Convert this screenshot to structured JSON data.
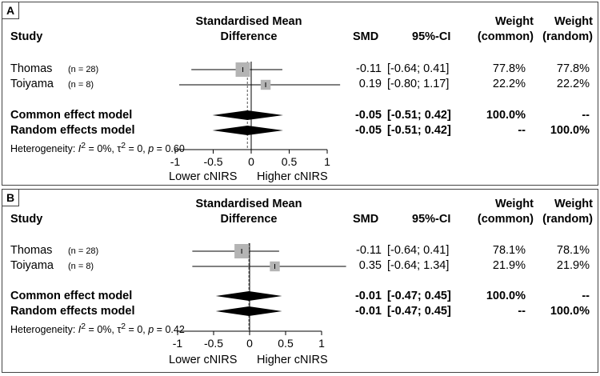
{
  "columns": {
    "study": "Study",
    "smd_line1": "Standardised Mean",
    "smd_line2": "Difference",
    "smd": "SMD",
    "ci": "95%-CI",
    "wc_line1": "Weight",
    "wc_line2": "(common)",
    "wr_line1": "Weight",
    "wr_line2": "(random)"
  },
  "colors": {
    "box": "#b4b4b4",
    "diamond": "#000000",
    "line": "#000000"
  },
  "chart_data": [
    {
      "type": "forest",
      "panel_label": "A",
      "xlim": [
        -1,
        1
      ],
      "ticks": [
        -1,
        -0.5,
        0,
        0.5,
        1
      ],
      "tick_labels": [
        "-1",
        "-0.5",
        "0",
        "0.5",
        "1"
      ],
      "xlabel_left": "Lower cNIRS",
      "xlabel_right": "Higher cNIRS",
      "studies": [
        {
          "name": "Thomas",
          "n": "(n = 28)",
          "smd": -0.11,
          "lo": -0.64,
          "hi": 0.41,
          "smd_text": "-0.11",
          "ci_text": "[-0.64; 0.41]",
          "w_common": "77.8%",
          "w_random": "77.8%",
          "weight": 77.8
        },
        {
          "name": "Toiyama",
          "n": "(n = 8)",
          "smd": 0.19,
          "lo": -0.8,
          "hi": 1.17,
          "smd_text": "0.19",
          "ci_text": "[-0.80; 1.17]",
          "w_common": "22.2%",
          "w_random": "22.2%",
          "weight": 22.2
        }
      ],
      "models": [
        {
          "name": "Common effect model",
          "smd": -0.05,
          "lo": -0.51,
          "hi": 0.42,
          "smd_text": "-0.05",
          "ci_text": "[-0.51; 0.42]",
          "w_common": "100.0%",
          "w_random": "--"
        },
        {
          "name": "Random effects model",
          "smd": -0.05,
          "lo": -0.51,
          "hi": 0.42,
          "smd_text": "-0.05",
          "ci_text": "[-0.51; 0.42]",
          "w_common": "--",
          "w_random": "100.0%"
        }
      ],
      "heterogeneity": {
        "prefix": "Heterogeneity: ",
        "i2": "0%",
        "tau2": "0",
        "p": "0.60"
      }
    },
    {
      "type": "forest",
      "panel_label": "B",
      "xlim": [
        -1,
        1
      ],
      "ticks": [
        -1,
        -0.5,
        0,
        0.5,
        1
      ],
      "tick_labels": [
        "-1",
        "-0.5",
        "0",
        "0.5",
        "1"
      ],
      "xlabel_left": "Lower cNIRS",
      "xlabel_right": "Higher cNIRS",
      "studies": [
        {
          "name": "Thomas",
          "n": "(n = 28)",
          "smd": -0.11,
          "lo": -0.64,
          "hi": 0.41,
          "smd_text": "-0.11",
          "ci_text": "[-0.64; 0.41]",
          "w_common": "78.1%",
          "w_random": "78.1%",
          "weight": 78.1
        },
        {
          "name": "Toiyama",
          "n": "(n = 8)",
          "smd": 0.35,
          "lo": -0.64,
          "hi": 1.34,
          "smd_text": "0.35",
          "ci_text": "[-0.64; 1.34]",
          "w_common": "21.9%",
          "w_random": "21.9%",
          "weight": 21.9
        }
      ],
      "models": [
        {
          "name": "Common effect model",
          "smd": -0.01,
          "lo": -0.47,
          "hi": 0.45,
          "smd_text": "-0.01",
          "ci_text": "[-0.47; 0.45]",
          "w_common": "100.0%",
          "w_random": "--"
        },
        {
          "name": "Random effects model",
          "smd": -0.01,
          "lo": -0.47,
          "hi": 0.45,
          "smd_text": "-0.01",
          "ci_text": "[-0.47; 0.45]",
          "w_common": "--",
          "w_random": "100.0%"
        }
      ],
      "heterogeneity": {
        "prefix": "Heterogeneity: ",
        "i2": "0%",
        "tau2": "0",
        "p": "0.42"
      }
    }
  ]
}
